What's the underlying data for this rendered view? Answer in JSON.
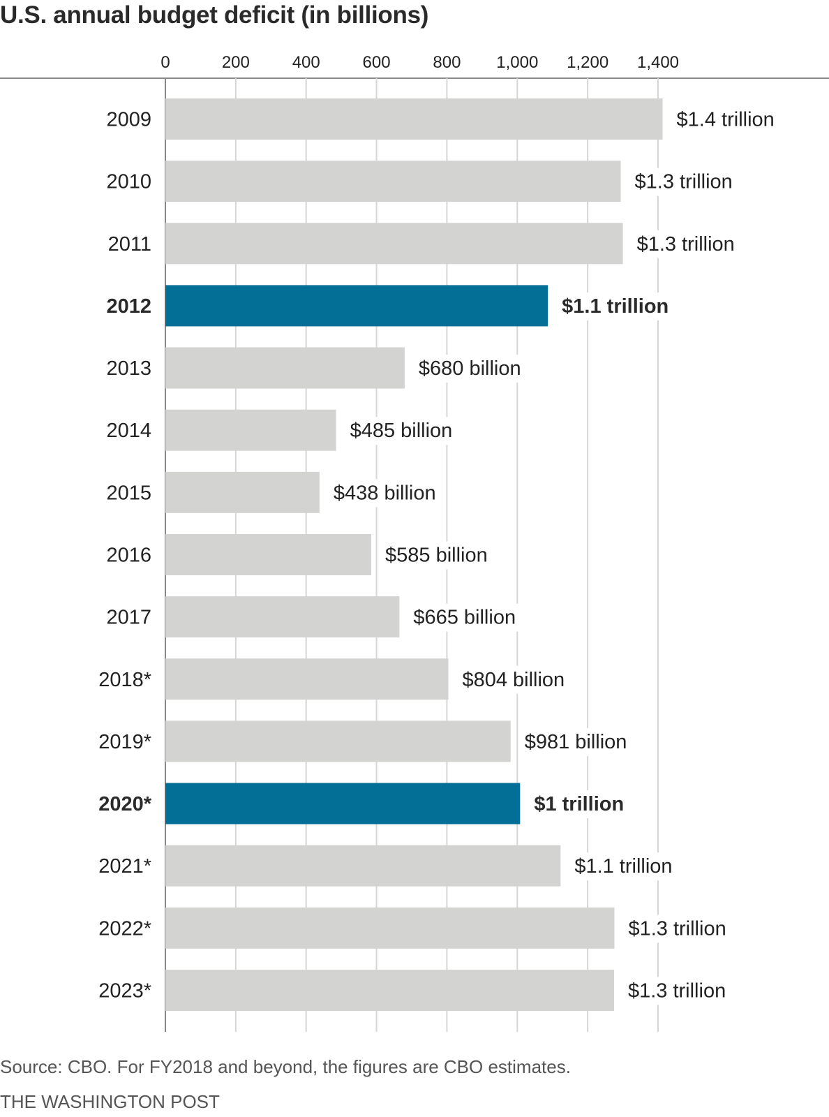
{
  "chart_data": {
    "type": "bar",
    "orientation": "horizontal",
    "title": "U.S. annual budget deficit (in billions)",
    "xlabel": "",
    "ylabel": "",
    "xlim": [
      0,
      1400
    ],
    "x_ticks": [
      0,
      200,
      400,
      600,
      800,
      1000,
      1200,
      1400
    ],
    "x_tick_labels": [
      "0",
      "200",
      "400",
      "600",
      "800",
      "1,000",
      "1,200",
      "1,400"
    ],
    "grid": true,
    "categories": [
      "2009",
      "2010",
      "2011",
      "2012",
      "2013",
      "2014",
      "2015",
      "2016",
      "2017",
      "2018*",
      "2019*",
      "2020*",
      "2021*",
      "2022*",
      "2023*"
    ],
    "values": [
      1413,
      1294,
      1300,
      1087,
      680,
      485,
      438,
      585,
      665,
      804,
      981,
      1008,
      1123,
      1276,
      1275
    ],
    "data_labels": [
      "$1.4 trillion",
      "$1.3 trillion",
      "$1.3 trillion",
      "$1.1 trillion",
      "$680 billion",
      "$485 billion",
      "$438 billion",
      "$585 billion",
      "$665 billion",
      "$804 billion",
      "$981 billion",
      "$1 trillion",
      "$1.1 trillion",
      "$1.3 trillion",
      "$1.3 trillion"
    ],
    "highlighted": [
      "2012",
      "2020*"
    ],
    "colors": {
      "default": "#d3d3d2",
      "highlight": "#046f96",
      "grid": "#d6d6d6",
      "axis": "#888888"
    }
  },
  "footer": {
    "source": "Source: CBO. For FY2018 and beyond, the figures are CBO estimates.",
    "credit": "THE WASHINGTON POST"
  }
}
